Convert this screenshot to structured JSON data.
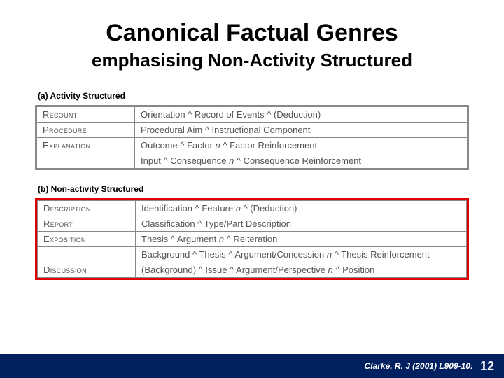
{
  "title": "Canonical Factual Genres",
  "subtitle": "emphasising Non-Activity Structured",
  "section_a": {
    "label": "(a) Activity Structured",
    "rows": [
      {
        "name": "Recount",
        "desc": "Orientation ^ Record of Events ^ (Deduction)"
      },
      {
        "name": "Procedure",
        "desc": "Procedural Aim ^ Instructional Component"
      },
      {
        "name": "Explanation",
        "desc": "Outcome ^ Factor n ^ Factor Reinforcement"
      },
      {
        "name": "",
        "desc": "Input ^ Consequence n ^ Consequence Reinforcement"
      }
    ]
  },
  "section_b": {
    "label": "(b) Non-activity Structured",
    "rows": [
      {
        "name": "Description",
        "desc": "Identification ^ Feature n ^ (Deduction)"
      },
      {
        "name": "Report",
        "desc": "Classification ^ Type/Part Description"
      },
      {
        "name": "Exposition",
        "desc": "Thesis ^ Argument n ^ Reiteration"
      },
      {
        "name": "",
        "desc": "Background ^ Thesis ^ Argument/Concession n ^ Thesis Reinforcement"
      },
      {
        "name": "Discussion",
        "desc": "(Background) ^ Issue ^ Argument/Perspective n ^ Position"
      }
    ]
  },
  "footer": {
    "citation": "Clarke, R. J (2001) L909-10:",
    "page": "12"
  },
  "colors": {
    "footer_bg": "#002060",
    "emphasis_border": "#e00000",
    "table_border": "#888888",
    "text_muted": "#555555"
  }
}
